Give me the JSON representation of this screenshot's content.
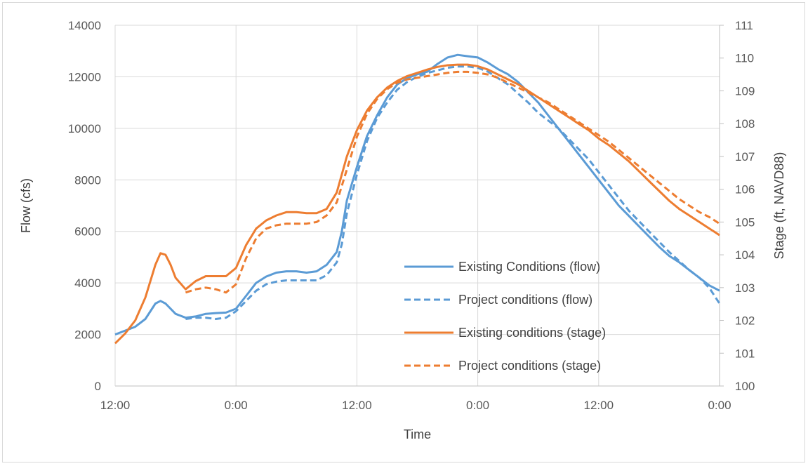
{
  "chart_data": {
    "type": "line",
    "title": "",
    "xlabel": "Time",
    "ylabel": "Flow (cfs)",
    "y2label": "Stage (ft, NAVD88)",
    "x_unit": "hours",
    "xlim": [
      0,
      60
    ],
    "ylim": [
      0,
      14000
    ],
    "y2lim": [
      100,
      111
    ],
    "x_ticks": [
      {
        "value": 0,
        "label": "12:00"
      },
      {
        "value": 12,
        "label": "0:00"
      },
      {
        "value": 24,
        "label": "12:00"
      },
      {
        "value": 36,
        "label": "0:00"
      },
      {
        "value": 48,
        "label": "12:00"
      },
      {
        "value": 60,
        "label": "0:00"
      }
    ],
    "y_ticks": [
      "0",
      "2000",
      "4000",
      "6000",
      "8000",
      "10000",
      "12000",
      "14000"
    ],
    "y2_ticks": [
      "100",
      "101",
      "102",
      "103",
      "104",
      "105",
      "106",
      "107",
      "108",
      "109",
      "110",
      "111"
    ],
    "grid": true,
    "legend_position": "center-right",
    "series": [
      {
        "name": "Existing Conditions (flow)",
        "axis": "left",
        "color": "#5b9bd5",
        "dash": "solid",
        "points": [
          [
            0,
            2000
          ],
          [
            1,
            2150
          ],
          [
            2,
            2300
          ],
          [
            3,
            2600
          ],
          [
            4,
            3200
          ],
          [
            4.5,
            3300
          ],
          [
            5,
            3200
          ],
          [
            6,
            2800
          ],
          [
            7,
            2650
          ],
          [
            8,
            2700
          ],
          [
            9,
            2800
          ],
          [
            10,
            2830
          ],
          [
            11,
            2850
          ],
          [
            12,
            3000
          ],
          [
            13,
            3500
          ],
          [
            14,
            4000
          ],
          [
            15,
            4250
          ],
          [
            16,
            4400
          ],
          [
            17,
            4450
          ],
          [
            18,
            4450
          ],
          [
            19,
            4400
          ],
          [
            20,
            4450
          ],
          [
            21,
            4700
          ],
          [
            22,
            5200
          ],
          [
            22.5,
            6000
          ],
          [
            23,
            7200
          ],
          [
            24,
            8500
          ],
          [
            25,
            9700
          ],
          [
            26,
            10500
          ],
          [
            27,
            11200
          ],
          [
            28,
            11700
          ],
          [
            29,
            11950
          ],
          [
            30,
            12100
          ],
          [
            31,
            12200
          ],
          [
            32,
            12500
          ],
          [
            33,
            12750
          ],
          [
            34,
            12850
          ],
          [
            35,
            12800
          ],
          [
            36,
            12750
          ],
          [
            37,
            12550
          ],
          [
            38,
            12300
          ],
          [
            39,
            12100
          ],
          [
            40,
            11800
          ],
          [
            41,
            11400
          ],
          [
            42,
            11000
          ],
          [
            43,
            10500
          ],
          [
            44,
            10000
          ],
          [
            45,
            9500
          ],
          [
            46,
            9000
          ],
          [
            47,
            8500
          ],
          [
            48,
            8000
          ],
          [
            49,
            7500
          ],
          [
            50,
            7000
          ],
          [
            51,
            6600
          ],
          [
            52,
            6200
          ],
          [
            53,
            5800
          ],
          [
            54,
            5400
          ],
          [
            55,
            5050
          ],
          [
            56,
            4800
          ],
          [
            57,
            4500
          ],
          [
            58,
            4200
          ],
          [
            59,
            3900
          ],
          [
            60,
            3700
          ]
        ]
      },
      {
        "name": "Project conditions (flow)",
        "axis": "left",
        "color": "#5b9bd5",
        "dash": "dashed",
        "points": [
          [
            7,
            2600
          ],
          [
            8,
            2650
          ],
          [
            9,
            2650
          ],
          [
            10,
            2600
          ],
          [
            11,
            2650
          ],
          [
            12,
            2900
          ],
          [
            13,
            3300
          ],
          [
            14,
            3700
          ],
          [
            15,
            3950
          ],
          [
            16,
            4050
          ],
          [
            17,
            4100
          ],
          [
            18,
            4100
          ],
          [
            19,
            4100
          ],
          [
            20,
            4100
          ],
          [
            21,
            4300
          ],
          [
            22,
            4800
          ],
          [
            22.5,
            5500
          ],
          [
            23,
            6700
          ],
          [
            24,
            8200
          ],
          [
            25,
            9500
          ],
          [
            26,
            10400
          ],
          [
            27,
            11000
          ],
          [
            28,
            11500
          ],
          [
            29,
            11800
          ],
          [
            30,
            12000
          ],
          [
            31,
            12150
          ],
          [
            32,
            12250
          ],
          [
            33,
            12350
          ],
          [
            34,
            12400
          ],
          [
            35,
            12400
          ],
          [
            36,
            12350
          ],
          [
            37,
            12200
          ],
          [
            38,
            11950
          ],
          [
            39,
            11700
          ],
          [
            40,
            11350
          ],
          [
            41,
            11000
          ],
          [
            42,
            10600
          ],
          [
            43,
            10300
          ],
          [
            44,
            10000
          ],
          [
            45,
            9600
          ],
          [
            46,
            9200
          ],
          [
            47,
            8800
          ],
          [
            48,
            8300
          ],
          [
            49,
            7800
          ],
          [
            50,
            7300
          ],
          [
            51,
            6800
          ],
          [
            52,
            6400
          ],
          [
            53,
            6000
          ],
          [
            54,
            5600
          ],
          [
            55,
            5200
          ],
          [
            56,
            4850
          ],
          [
            57,
            4500
          ],
          [
            58,
            4200
          ],
          [
            59,
            3800
          ],
          [
            60,
            3200
          ]
        ]
      },
      {
        "name": "Existing conditions (stage)",
        "axis": "right",
        "color": "#ed7d31",
        "dash": "solid",
        "points": [
          [
            0,
            101.3
          ],
          [
            1,
            101.6
          ],
          [
            2,
            102.0
          ],
          [
            3,
            102.7
          ],
          [
            4,
            103.7
          ],
          [
            4.5,
            104.05
          ],
          [
            5,
            104.0
          ],
          [
            5.5,
            103.7
          ],
          [
            6,
            103.3
          ],
          [
            7,
            102.95
          ],
          [
            8,
            103.2
          ],
          [
            9,
            103.35
          ],
          [
            10,
            103.35
          ],
          [
            11,
            103.35
          ],
          [
            12,
            103.6
          ],
          [
            13,
            104.3
          ],
          [
            14,
            104.8
          ],
          [
            15,
            105.05
          ],
          [
            16,
            105.2
          ],
          [
            17,
            105.3
          ],
          [
            18,
            105.3
          ],
          [
            19,
            105.27
          ],
          [
            20,
            105.27
          ],
          [
            21,
            105.4
          ],
          [
            22,
            105.9
          ],
          [
            23,
            107.0
          ],
          [
            24,
            107.8
          ],
          [
            25,
            108.4
          ],
          [
            26,
            108.8
          ],
          [
            27,
            109.1
          ],
          [
            28,
            109.3
          ],
          [
            29,
            109.45
          ],
          [
            30,
            109.55
          ],
          [
            31,
            109.65
          ],
          [
            32,
            109.73
          ],
          [
            33,
            109.78
          ],
          [
            34,
            109.8
          ],
          [
            35,
            109.8
          ],
          [
            36,
            109.75
          ],
          [
            37,
            109.65
          ],
          [
            38,
            109.5
          ],
          [
            39,
            109.35
          ],
          [
            40,
            109.2
          ],
          [
            41,
            109.0
          ],
          [
            42,
            108.8
          ],
          [
            43,
            108.6
          ],
          [
            44,
            108.4
          ],
          [
            45,
            108.2
          ],
          [
            46,
            108.0
          ],
          [
            47,
            107.8
          ],
          [
            48,
            107.55
          ],
          [
            49,
            107.35
          ],
          [
            50,
            107.1
          ],
          [
            51,
            106.85
          ],
          [
            52,
            106.55
          ],
          [
            53,
            106.25
          ],
          [
            54,
            105.95
          ],
          [
            55,
            105.65
          ],
          [
            56,
            105.4
          ],
          [
            57,
            105.2
          ],
          [
            58,
            105.0
          ],
          [
            59,
            104.8
          ],
          [
            60,
            104.6
          ]
        ]
      },
      {
        "name": "Project conditions (stage)",
        "axis": "right",
        "color": "#ed7d31",
        "dash": "dashed",
        "points": [
          [
            7,
            102.85
          ],
          [
            8,
            102.95
          ],
          [
            9,
            103.0
          ],
          [
            10,
            102.95
          ],
          [
            11,
            102.85
          ],
          [
            12,
            103.1
          ],
          [
            13,
            103.9
          ],
          [
            14,
            104.5
          ],
          [
            15,
            104.8
          ],
          [
            16,
            104.9
          ],
          [
            17,
            104.95
          ],
          [
            18,
            104.95
          ],
          [
            19,
            104.95
          ],
          [
            20,
            105.0
          ],
          [
            21,
            105.2
          ],
          [
            22,
            105.6
          ],
          [
            23,
            106.6
          ],
          [
            24,
            107.6
          ],
          [
            25,
            108.3
          ],
          [
            26,
            108.75
          ],
          [
            27,
            109.05
          ],
          [
            28,
            109.25
          ],
          [
            29,
            109.35
          ],
          [
            30,
            109.4
          ],
          [
            31,
            109.45
          ],
          [
            32,
            109.5
          ],
          [
            33,
            109.55
          ],
          [
            34,
            109.58
          ],
          [
            35,
            109.58
          ],
          [
            36,
            109.55
          ],
          [
            37,
            109.5
          ],
          [
            38,
            109.4
          ],
          [
            39,
            109.25
          ],
          [
            40,
            109.1
          ],
          [
            41,
            108.95
          ],
          [
            42,
            108.8
          ],
          [
            43,
            108.65
          ],
          [
            44,
            108.45
          ],
          [
            45,
            108.25
          ],
          [
            46,
            108.05
          ],
          [
            47,
            107.85
          ],
          [
            48,
            107.65
          ],
          [
            49,
            107.45
          ],
          [
            50,
            107.2
          ],
          [
            51,
            106.95
          ],
          [
            52,
            106.7
          ],
          [
            53,
            106.45
          ],
          [
            54,
            106.2
          ],
          [
            55,
            105.95
          ],
          [
            56,
            105.7
          ],
          [
            57,
            105.5
          ],
          [
            58,
            105.3
          ],
          [
            59,
            105.15
          ],
          [
            60,
            104.95
          ]
        ]
      }
    ]
  }
}
